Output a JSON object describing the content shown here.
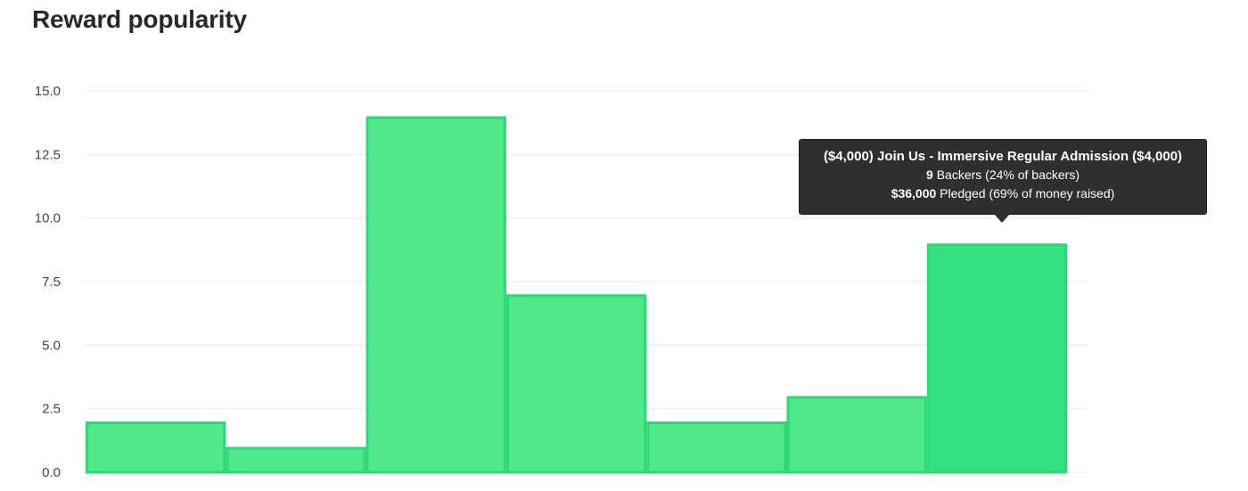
{
  "title": "Reward popularity",
  "chart_data": {
    "type": "bar",
    "title": "Reward popularity",
    "xlabel": "",
    "ylabel": "",
    "ylim": [
      0,
      15
    ],
    "yticks": [
      "0.0",
      "2.5",
      "5.0",
      "7.5",
      "10.0",
      "12.5",
      "15.0"
    ],
    "values": [
      2,
      1,
      14,
      7,
      2,
      3,
      9
    ],
    "grid": true,
    "highlighted_index": 6
  },
  "tooltip": {
    "title": "($4,000) Join Us - Immersive Regular Admission ($4,000)",
    "backers_count": "9",
    "backers_text": " Backers (24% of backers)",
    "pledged_amount": "$36,000",
    "pledged_text": " Pledged (69% of money raised)"
  },
  "colors": {
    "bar_fill": "#4fe88b",
    "bar_stroke": "#2fd775",
    "bar_active_fill": "#35e07f",
    "tooltip_bg": "#2f2f2f"
  }
}
